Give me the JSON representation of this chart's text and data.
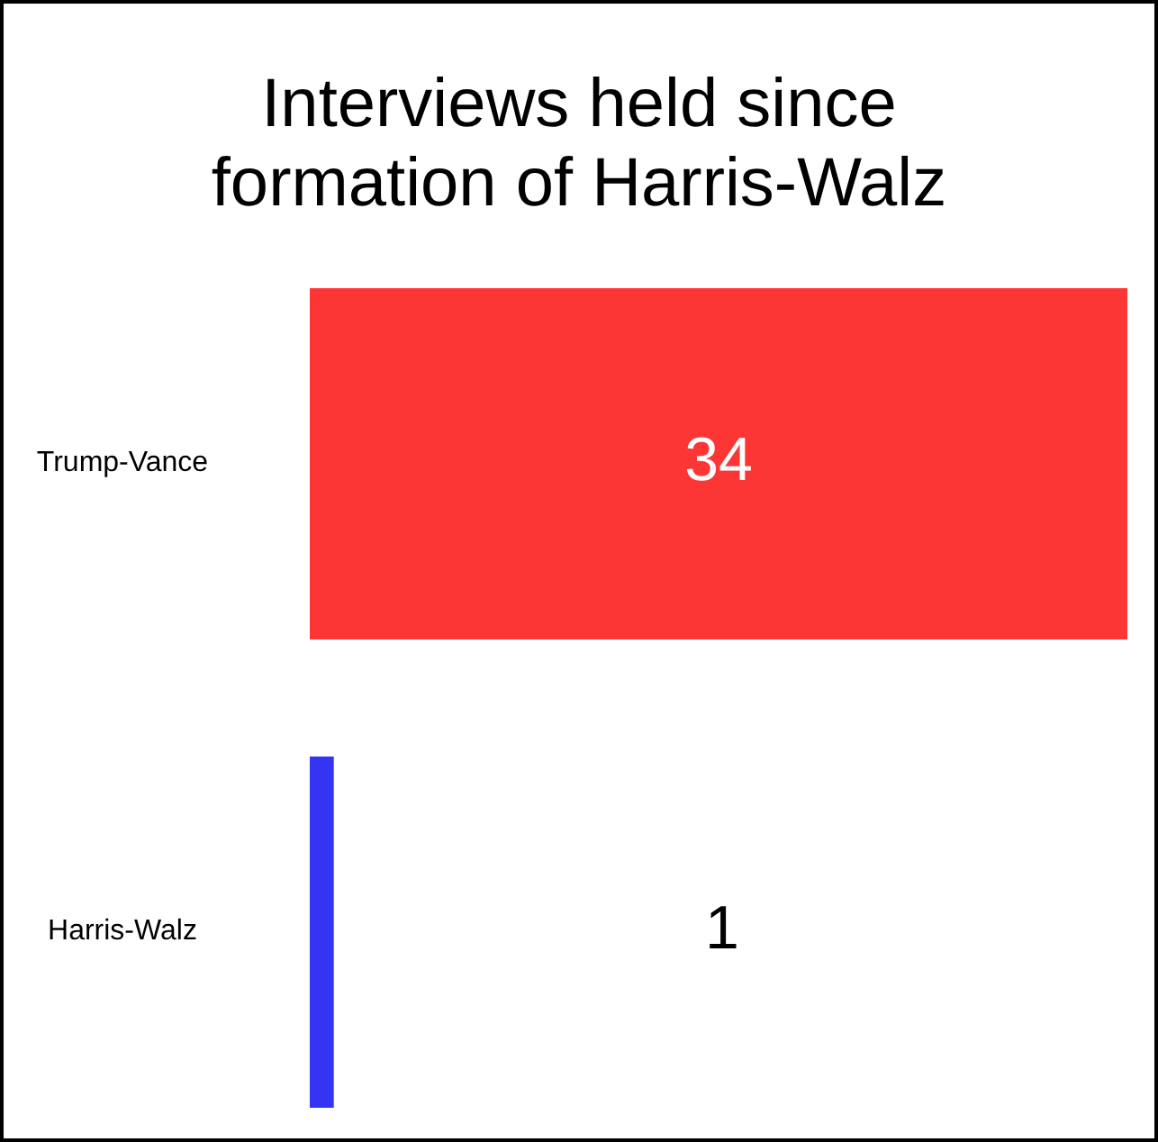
{
  "chart_data": {
    "type": "bar",
    "orientation": "horizontal",
    "title": "Interviews held since formation of Harris-Walz",
    "categories": [
      "Trump-Vance",
      "Harris-Walz"
    ],
    "values": [
      34,
      1
    ],
    "colors": [
      "#fc3535",
      "#3434f5"
    ],
    "data_labels": true
  }
}
